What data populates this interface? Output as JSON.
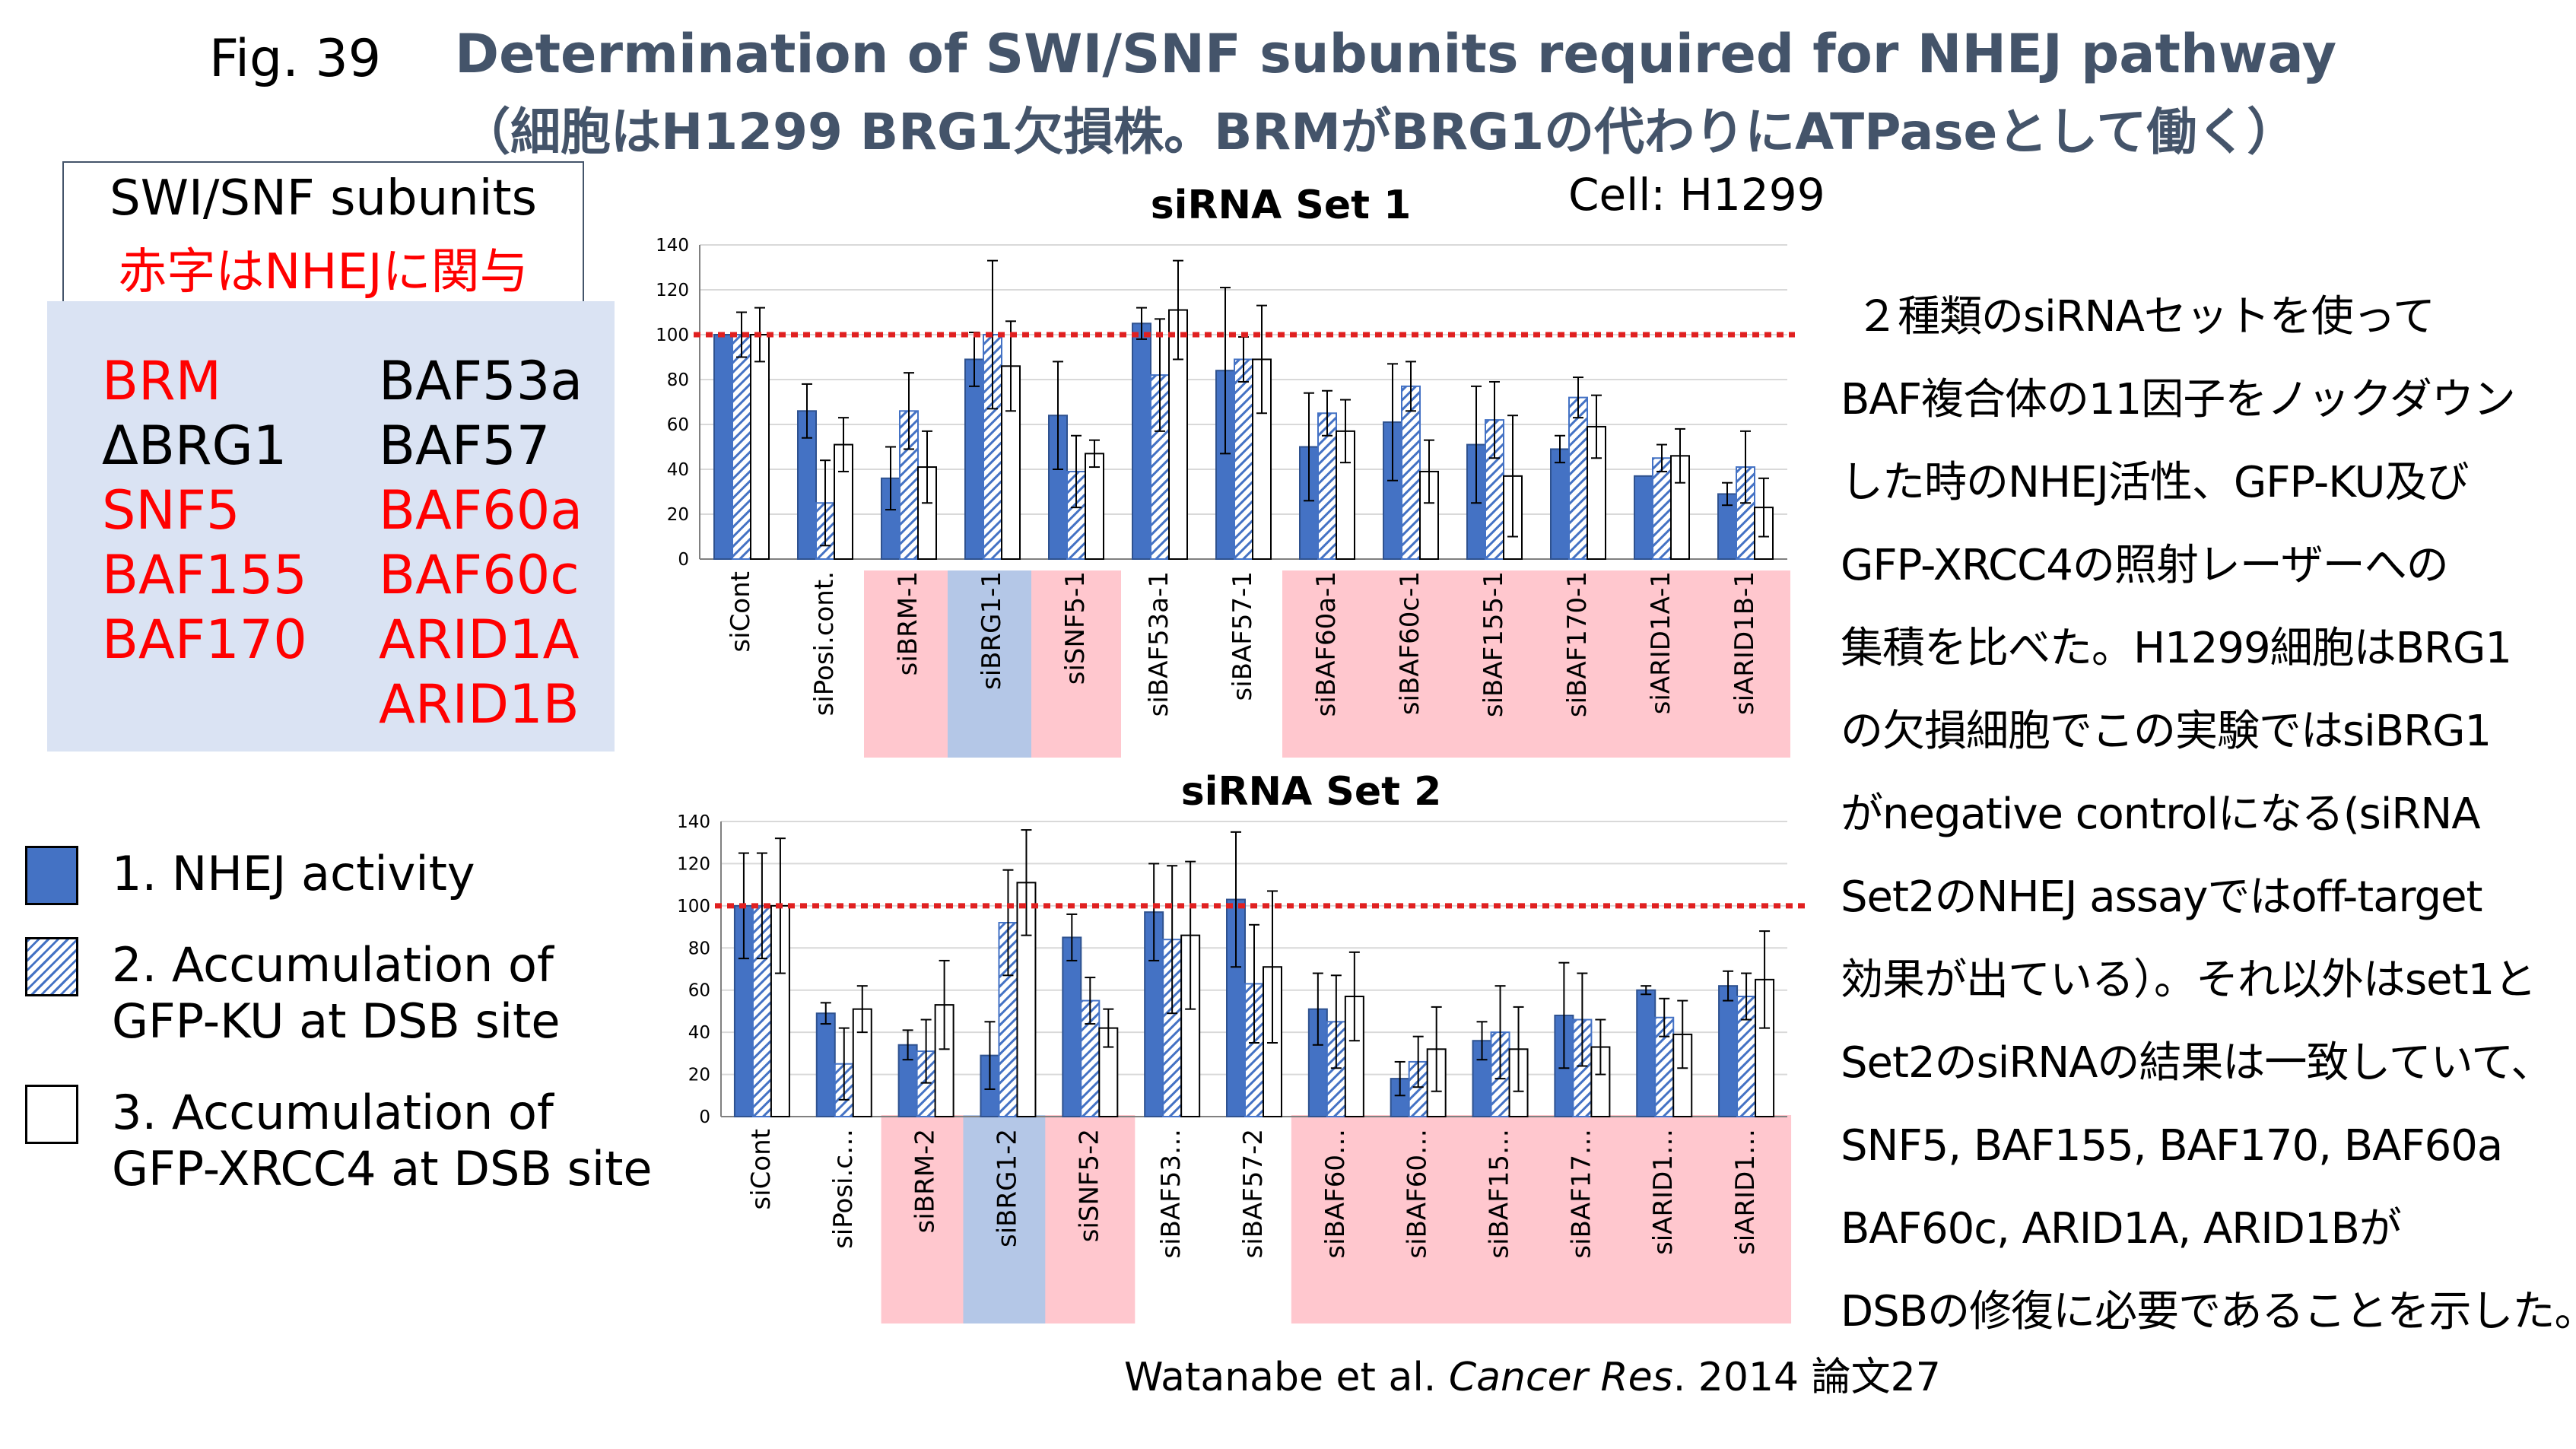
{
  "figure": {
    "number": "Fig. 39",
    "title": "Determination of SWI/SNF subunits required for NHEJ pathway",
    "subtitle": "（細胞はH1299 BRG1欠損株。BRMがBRG1の代わりにATPaseとして働く）"
  },
  "subunits": {
    "header": "SWI/SNF subunits",
    "note": "赤字はNHEJに関与",
    "left_column": [
      {
        "name": "BRM",
        "color": "#ff0000"
      },
      {
        "name": "ΔBRG1",
        "color": "#000000"
      },
      {
        "name": "SNF5",
        "color": "#ff0000"
      },
      {
        "name": "BAF155",
        "color": "#ff0000"
      },
      {
        "name": "BAF170",
        "color": "#ff0000"
      }
    ],
    "right_column": [
      {
        "name": "BAF53a",
        "color": "#000000"
      },
      {
        "name": "BAF57",
        "color": "#000000"
      },
      {
        "name": "BAF60a",
        "color": "#ff0000"
      },
      {
        "name": "BAF60c",
        "color": "#ff0000"
      },
      {
        "name": "ARID1A",
        "color": "#ff0000"
      },
      {
        "name": "ARID1B",
        "color": "#ff0000"
      }
    ]
  },
  "legend": {
    "item1": "1. NHEJ activity",
    "item2_l1": "2. Accumulation of",
    "item2_l2": "GFP-KU at DSB site",
    "item3_l1": "3. Accumulation of",
    "item3_l2": "GFP-XRCC4 at DSB site"
  },
  "cell_label": "Cell: H1299",
  "description_lines": [
    "２種類のsiRNAセットを使って",
    "BAF複合体の11因子をノックダウン",
    "した時のNHEJ活性、GFP-KU及び",
    "GFP-XRCC4の照射レーザーへの",
    "集積を比べた。H1299細胞はBRG1",
    "の欠損細胞でこの実験ではsiBRG1",
    "がnegative controlになる(siRNA",
    "Set2のNHEJ assayではoff-target",
    "効果が出ている）。それ以外はset1と",
    "Set2のsiRNAの結果は一致していて、",
    "SNF5, BAF155, BAF170, BAF60a",
    "BAF60c, ARID1A, ARID1Bが",
    "DSBの修復に必要であることを示した。"
  ],
  "citation": {
    "authors": "Watanabe et al. ",
    "journal": "Cancer Res",
    "rest": ". 2014 論文27"
  },
  "colors": {
    "nhej": "#4472c4",
    "highlight_red": "#ffc7ce",
    "highlight_blue": "#b4c7e7",
    "reference_line": "#e02020",
    "title": "#44546a"
  },
  "chart_data": [
    {
      "type": "bar",
      "title": "siRNA Set 1",
      "ylim": [
        0,
        140
      ],
      "yticks": [
        0,
        20,
        40,
        60,
        80,
        100,
        120,
        140
      ],
      "reference_line": 100,
      "categories": [
        "siCont",
        "siPosi.cont.",
        "siBRM-1",
        "siBRG1-1",
        "siSNF5-1",
        "siBAF53a-1",
        "siBAF57-1",
        "siBAF60a-1",
        "siBAF60c-1",
        "siBAF155-1",
        "siBAF170-1",
        "siARID1A-1",
        "siARID1B-1"
      ],
      "highlight": [
        "none",
        "none",
        "red",
        "blue",
        "red",
        "none",
        "none",
        "red",
        "red",
        "red",
        "red",
        "red",
        "red"
      ],
      "series": [
        {
          "name": "1. NHEJ activity",
          "values": [
            100,
            66,
            36,
            89,
            64,
            105,
            84,
            50,
            61,
            51,
            49,
            37,
            29
          ],
          "errors": [
            0,
            12,
            14,
            12,
            24,
            7,
            37,
            24,
            26,
            26,
            6,
            0,
            5
          ]
        },
        {
          "name": "2. Accumulation of GFP-KU at DSB site",
          "values": [
            100,
            25,
            66,
            100,
            39,
            82,
            89,
            65,
            77,
            62,
            72,
            45,
            41
          ],
          "errors": [
            10,
            19,
            17,
            33,
            16,
            25,
            10,
            10,
            11,
            17,
            9,
            6,
            16
          ]
        },
        {
          "name": "3. Accumulation of GFP-XRCC4 at DSB site",
          "values": [
            100,
            51,
            41,
            86,
            47,
            111,
            89,
            57,
            39,
            37,
            59,
            46,
            23
          ],
          "errors": [
            12,
            12,
            16,
            20,
            6,
            22,
            24,
            14,
            14,
            27,
            14,
            12,
            13
          ]
        }
      ]
    },
    {
      "type": "bar",
      "title": "siRNA Set 2",
      "ylim": [
        0,
        140
      ],
      "yticks": [
        0,
        20,
        40,
        60,
        80,
        100,
        120,
        140
      ],
      "reference_line": 100,
      "categories": [
        "siCont",
        "siPosi.c…",
        "siBRM-2",
        "siBRG1-2",
        "siSNF5-2",
        "siBAF53…",
        "siBAF57-2",
        "siBAF60…",
        "siBAF60…",
        "siBAF15…",
        "siBAF17…",
        "siARID1…",
        "siARID1…"
      ],
      "highlight": [
        "none",
        "none",
        "red",
        "blue",
        "red",
        "none",
        "none",
        "red",
        "red",
        "red",
        "red",
        "red",
        "red"
      ],
      "series": [
        {
          "name": "1. NHEJ activity",
          "values": [
            100,
            49,
            34,
            29,
            85,
            97,
            103,
            51,
            18,
            36,
            48,
            60,
            62
          ],
          "errors": [
            25,
            5,
            7,
            16,
            11,
            23,
            32,
            17,
            8,
            9,
            25,
            2,
            7
          ]
        },
        {
          "name": "2. Accumulation of GFP-KU at DSB site",
          "values": [
            100,
            25,
            31,
            92,
            55,
            84,
            63,
            45,
            26,
            40,
            46,
            47,
            57
          ],
          "errors": [
            25,
            17,
            15,
            25,
            11,
            35,
            28,
            22,
            12,
            22,
            22,
            9,
            11
          ]
        },
        {
          "name": "3. Accumulation of GFP-XRCC4 at DSB site",
          "values": [
            100,
            51,
            53,
            111,
            42,
            86,
            71,
            57,
            32,
            32,
            33,
            39,
            65
          ],
          "errors": [
            32,
            11,
            21,
            25,
            9,
            35,
            36,
            21,
            20,
            20,
            13,
            16,
            23
          ]
        }
      ]
    }
  ]
}
